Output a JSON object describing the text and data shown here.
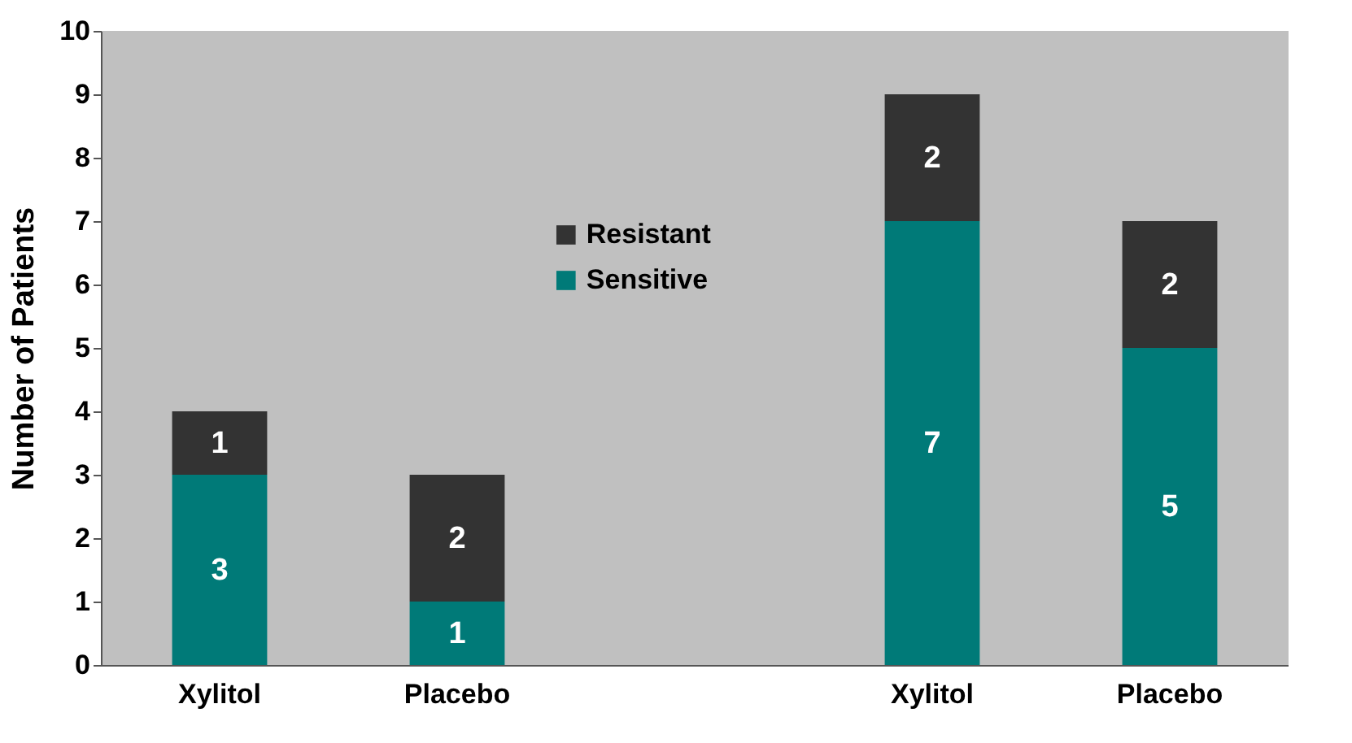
{
  "chart_data": {
    "type": "bar",
    "stacked": true,
    "ylabel": "Number of Patients",
    "categories": [
      "Xylitol",
      "Placebo",
      null,
      "Xylitol",
      "Placebo"
    ],
    "series": [
      {
        "name": "Sensitive",
        "color": "#007a78",
        "values": [
          3,
          1,
          null,
          7,
          5
        ]
      },
      {
        "name": "Resistant",
        "color": "#333333",
        "values": [
          1,
          2,
          null,
          2,
          2
        ]
      }
    ],
    "ylim": [
      0,
      10
    ],
    "yticks": [
      0,
      1,
      2,
      3,
      4,
      5,
      6,
      7,
      8,
      9,
      10
    ],
    "grid": false,
    "legend": "top",
    "data_labels": true
  }
}
